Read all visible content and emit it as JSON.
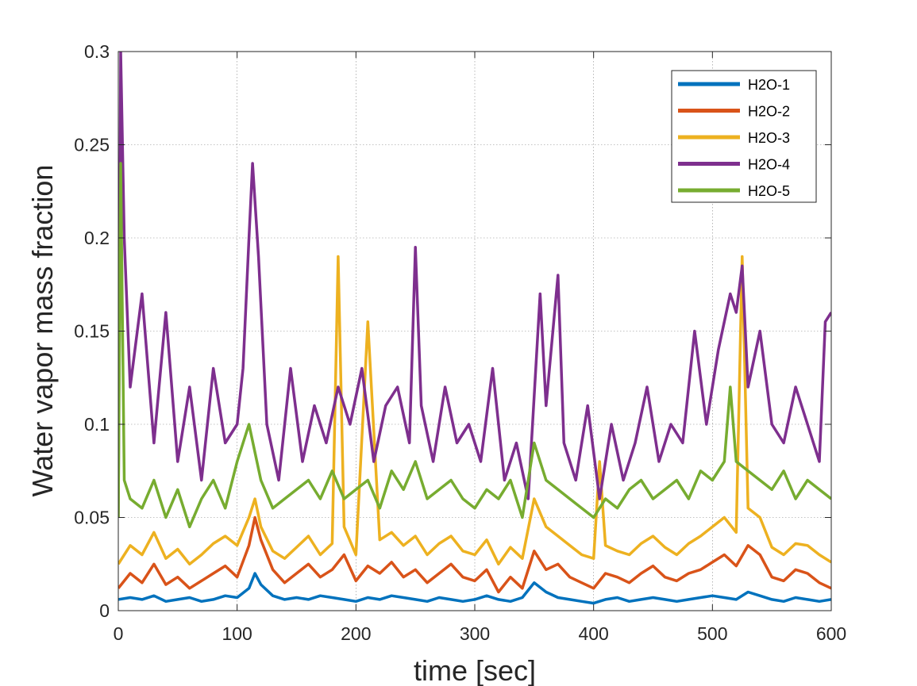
{
  "chart_data": {
    "type": "line",
    "xlabel": "time [sec]",
    "ylabel": "Water vapor mass fraction",
    "xlim": [
      0,
      600
    ],
    "ylim": [
      0,
      0.3
    ],
    "xticks": [
      0,
      100,
      200,
      300,
      400,
      500,
      600
    ],
    "yticks": [
      0,
      0.05,
      0.1,
      0.15,
      0.2,
      0.25,
      0.3
    ],
    "xtick_labels": [
      "0",
      "100",
      "200",
      "300",
      "400",
      "500",
      "600"
    ],
    "ytick_labels": [
      "0",
      "0.05",
      "0.1",
      "0.15",
      "0.2",
      "0.25",
      "0.3"
    ],
    "grid": true,
    "legend_position": "top-right",
    "series": [
      {
        "name": "H2O-1",
        "color": "#0072BD",
        "x": [
          0,
          10,
          20,
          30,
          40,
          50,
          60,
          70,
          80,
          90,
          100,
          110,
          115,
          120,
          130,
          140,
          150,
          160,
          170,
          180,
          190,
          200,
          210,
          220,
          230,
          240,
          250,
          260,
          270,
          280,
          290,
          300,
          310,
          320,
          330,
          340,
          350,
          360,
          370,
          380,
          390,
          400,
          410,
          420,
          430,
          440,
          450,
          460,
          470,
          480,
          490,
          500,
          510,
          520,
          530,
          540,
          550,
          560,
          570,
          580,
          590,
          600
        ],
        "y": [
          0.006,
          0.007,
          0.006,
          0.008,
          0.005,
          0.006,
          0.007,
          0.005,
          0.006,
          0.008,
          0.007,
          0.012,
          0.02,
          0.014,
          0.008,
          0.006,
          0.007,
          0.006,
          0.008,
          0.007,
          0.006,
          0.005,
          0.007,
          0.006,
          0.008,
          0.007,
          0.006,
          0.005,
          0.007,
          0.006,
          0.005,
          0.006,
          0.008,
          0.006,
          0.005,
          0.007,
          0.015,
          0.01,
          0.007,
          0.006,
          0.005,
          0.004,
          0.006,
          0.007,
          0.005,
          0.006,
          0.007,
          0.006,
          0.005,
          0.006,
          0.007,
          0.008,
          0.007,
          0.006,
          0.01,
          0.008,
          0.006,
          0.005,
          0.007,
          0.006,
          0.005,
          0.006
        ]
      },
      {
        "name": "H2O-2",
        "color": "#D95319",
        "x": [
          0,
          10,
          20,
          30,
          40,
          50,
          60,
          70,
          80,
          90,
          100,
          110,
          115,
          120,
          130,
          140,
          150,
          160,
          170,
          180,
          190,
          200,
          210,
          220,
          230,
          240,
          250,
          260,
          270,
          280,
          290,
          300,
          310,
          320,
          330,
          340,
          350,
          360,
          370,
          380,
          390,
          400,
          410,
          420,
          430,
          440,
          450,
          460,
          470,
          480,
          490,
          500,
          510,
          520,
          530,
          540,
          550,
          560,
          570,
          580,
          590,
          600
        ],
        "y": [
          0.012,
          0.02,
          0.015,
          0.025,
          0.014,
          0.018,
          0.012,
          0.016,
          0.02,
          0.024,
          0.018,
          0.035,
          0.05,
          0.038,
          0.022,
          0.015,
          0.02,
          0.025,
          0.018,
          0.022,
          0.03,
          0.016,
          0.024,
          0.02,
          0.026,
          0.018,
          0.022,
          0.015,
          0.02,
          0.025,
          0.018,
          0.016,
          0.022,
          0.01,
          0.018,
          0.012,
          0.032,
          0.022,
          0.025,
          0.018,
          0.015,
          0.012,
          0.02,
          0.018,
          0.015,
          0.02,
          0.024,
          0.018,
          0.016,
          0.02,
          0.022,
          0.026,
          0.03,
          0.024,
          0.035,
          0.03,
          0.018,
          0.016,
          0.022,
          0.02,
          0.015,
          0.012
        ]
      },
      {
        "name": "H2O-3",
        "color": "#EDB120",
        "x": [
          0,
          10,
          20,
          30,
          40,
          50,
          60,
          70,
          80,
          90,
          100,
          110,
          115,
          120,
          130,
          140,
          150,
          160,
          170,
          180,
          185,
          190,
          200,
          210,
          220,
          230,
          240,
          250,
          260,
          270,
          280,
          290,
          300,
          310,
          320,
          330,
          340,
          350,
          360,
          370,
          380,
          390,
          400,
          405,
          410,
          420,
          430,
          440,
          450,
          460,
          470,
          480,
          490,
          500,
          510,
          520,
          525,
          530,
          540,
          550,
          560,
          570,
          580,
          590,
          600
        ],
        "y": [
          0.025,
          0.035,
          0.03,
          0.042,
          0.028,
          0.033,
          0.025,
          0.03,
          0.036,
          0.04,
          0.035,
          0.05,
          0.06,
          0.045,
          0.032,
          0.028,
          0.034,
          0.04,
          0.03,
          0.036,
          0.19,
          0.045,
          0.03,
          0.155,
          0.038,
          0.042,
          0.035,
          0.04,
          0.03,
          0.036,
          0.04,
          0.032,
          0.03,
          0.038,
          0.025,
          0.034,
          0.028,
          0.06,
          0.045,
          0.04,
          0.035,
          0.03,
          0.028,
          0.08,
          0.035,
          0.032,
          0.03,
          0.036,
          0.04,
          0.034,
          0.03,
          0.036,
          0.04,
          0.045,
          0.05,
          0.042,
          0.19,
          0.055,
          0.05,
          0.034,
          0.03,
          0.036,
          0.035,
          0.03,
          0.026
        ]
      },
      {
        "name": "H2O-4",
        "color": "#7E2F8E",
        "x": [
          0,
          2,
          5,
          10,
          20,
          30,
          40,
          50,
          60,
          70,
          80,
          90,
          100,
          105,
          110,
          113,
          118,
          125,
          135,
          145,
          155,
          165,
          175,
          185,
          195,
          205,
          215,
          225,
          235,
          245,
          250,
          255,
          265,
          275,
          285,
          295,
          305,
          315,
          325,
          335,
          345,
          355,
          360,
          365,
          370,
          375,
          385,
          395,
          405,
          415,
          425,
          435,
          445,
          455,
          465,
          475,
          485,
          495,
          505,
          515,
          520,
          525,
          530,
          540,
          550,
          560,
          570,
          580,
          590,
          595,
          600
        ],
        "y": [
          0.05,
          0.3,
          0.2,
          0.12,
          0.17,
          0.09,
          0.16,
          0.08,
          0.12,
          0.07,
          0.13,
          0.09,
          0.1,
          0.13,
          0.2,
          0.24,
          0.19,
          0.1,
          0.07,
          0.13,
          0.08,
          0.11,
          0.09,
          0.12,
          0.1,
          0.13,
          0.08,
          0.11,
          0.12,
          0.09,
          0.195,
          0.11,
          0.08,
          0.12,
          0.09,
          0.1,
          0.08,
          0.13,
          0.07,
          0.09,
          0.06,
          0.17,
          0.11,
          0.145,
          0.18,
          0.09,
          0.07,
          0.11,
          0.06,
          0.1,
          0.07,
          0.09,
          0.12,
          0.08,
          0.1,
          0.09,
          0.15,
          0.1,
          0.14,
          0.17,
          0.16,
          0.185,
          0.12,
          0.15,
          0.1,
          0.09,
          0.12,
          0.1,
          0.08,
          0.155,
          0.16
        ]
      },
      {
        "name": "H2O-5",
        "color": "#77AC30",
        "x": [
          0,
          2,
          5,
          10,
          20,
          30,
          40,
          50,
          60,
          70,
          80,
          90,
          100,
          110,
          115,
          120,
          130,
          140,
          150,
          160,
          170,
          180,
          190,
          200,
          210,
          220,
          230,
          240,
          250,
          260,
          270,
          280,
          290,
          300,
          310,
          320,
          330,
          340,
          350,
          360,
          370,
          380,
          390,
          400,
          410,
          420,
          430,
          440,
          450,
          460,
          470,
          480,
          490,
          500,
          510,
          515,
          520,
          530,
          540,
          550,
          560,
          570,
          580,
          590,
          600
        ],
        "y": [
          0.05,
          0.24,
          0.07,
          0.06,
          0.055,
          0.07,
          0.05,
          0.065,
          0.045,
          0.06,
          0.07,
          0.055,
          0.08,
          0.1,
          0.085,
          0.07,
          0.055,
          0.06,
          0.065,
          0.07,
          0.06,
          0.075,
          0.06,
          0.065,
          0.07,
          0.055,
          0.075,
          0.065,
          0.08,
          0.06,
          0.065,
          0.07,
          0.06,
          0.055,
          0.065,
          0.06,
          0.07,
          0.05,
          0.09,
          0.07,
          0.065,
          0.06,
          0.055,
          0.05,
          0.06,
          0.055,
          0.065,
          0.07,
          0.06,
          0.065,
          0.07,
          0.06,
          0.075,
          0.07,
          0.08,
          0.12,
          0.08,
          0.075,
          0.07,
          0.065,
          0.075,
          0.06,
          0.07,
          0.065,
          0.06
        ]
      }
    ]
  }
}
